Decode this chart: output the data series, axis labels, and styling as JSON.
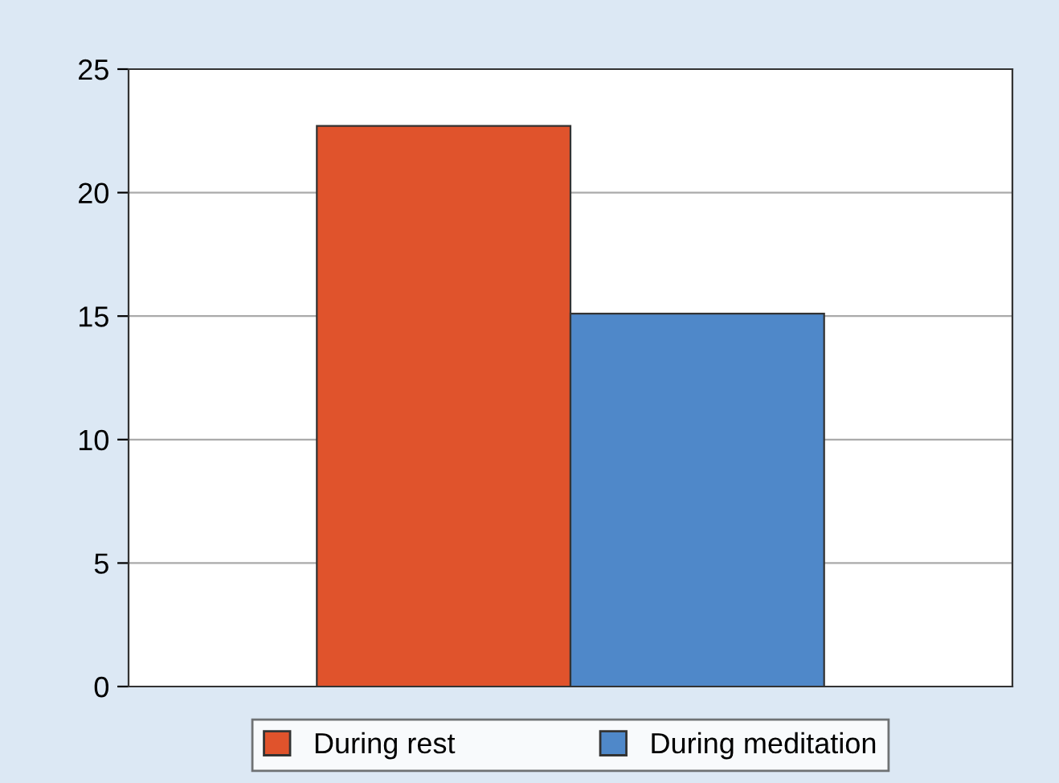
{
  "chart_data": {
    "type": "bar",
    "categories": [
      null
    ],
    "series": [
      {
        "name": "During rest",
        "color": "#e0532c",
        "values": [
          22.7
        ]
      },
      {
        "name": "During meditation",
        "color": "#4f88c9",
        "values": [
          15.1
        ]
      }
    ],
    "ylim": [
      0,
      25
    ],
    "yticks": [
      0,
      5,
      10,
      15,
      20,
      25
    ],
    "grid": "y",
    "legend": "bottom"
  }
}
